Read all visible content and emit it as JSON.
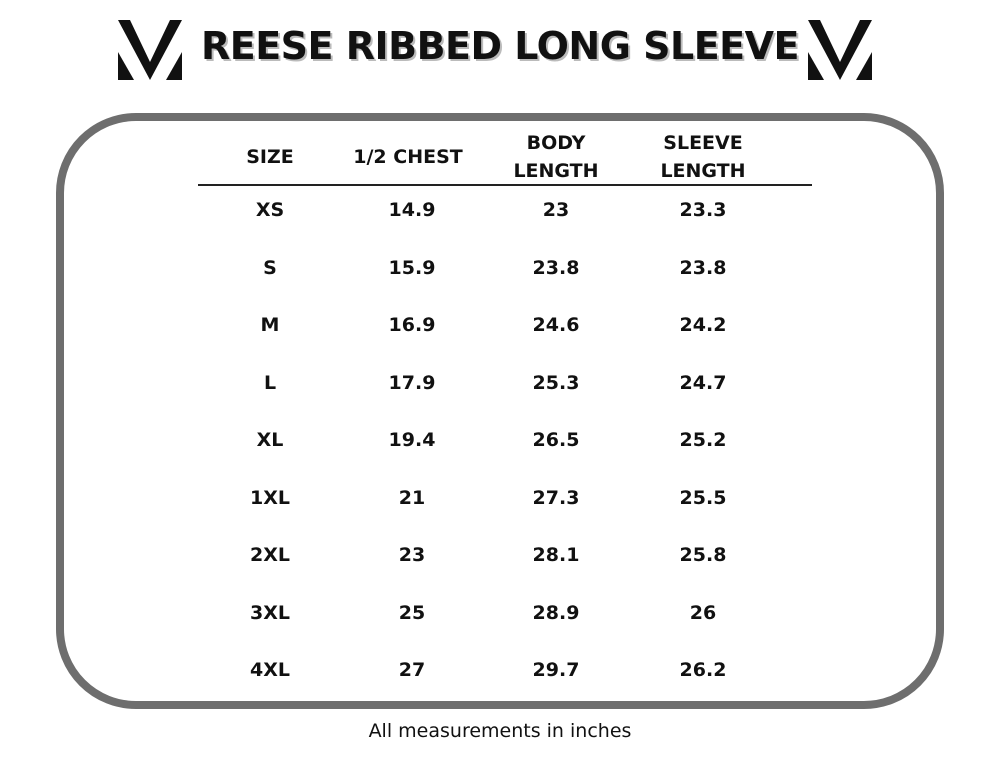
{
  "header": {
    "title": "REESE RIBBED LONG SLEEVE"
  },
  "table": {
    "columns": [
      "SIZE",
      "1/2 CHEST",
      "BODY LENGTH",
      "SLEEVE LENGTH"
    ],
    "rows": [
      [
        "XS",
        "14.9",
        "23",
        "23.3"
      ],
      [
        "S",
        "15.9",
        "23.8",
        "23.8"
      ],
      [
        "M",
        "16.9",
        "24.6",
        "24.2"
      ],
      [
        "L",
        "17.9",
        "25.3",
        "24.7"
      ],
      [
        "XL",
        "19.4",
        "26.5",
        "25.2"
      ],
      [
        "1XL",
        "21",
        "27.3",
        "25.5"
      ],
      [
        "2XL",
        "23",
        "28.1",
        "25.8"
      ],
      [
        "3XL",
        "25",
        "28.9",
        "26"
      ],
      [
        "4XL",
        "27",
        "29.7",
        "26.2"
      ]
    ]
  },
  "footer": {
    "note": "All measurements in inches"
  }
}
